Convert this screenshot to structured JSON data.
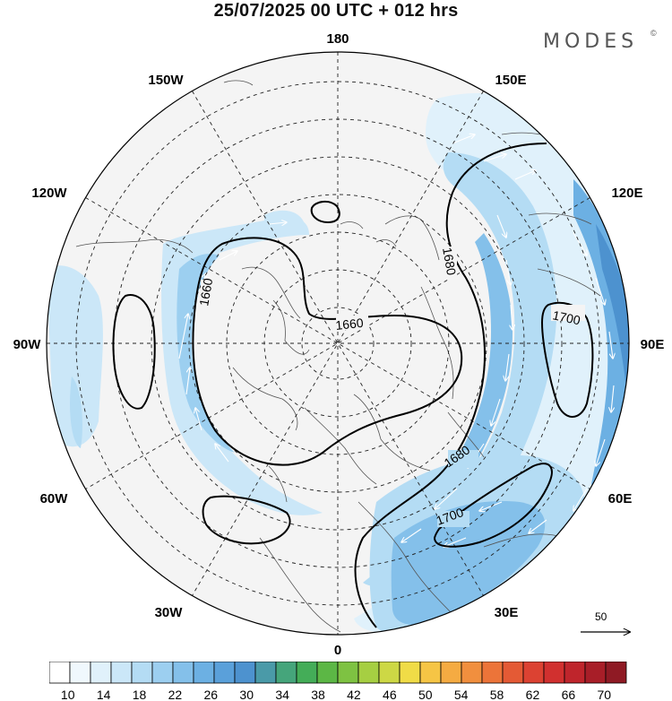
{
  "title": "25/07/2025  00 UTC  + 012 hrs",
  "brand": "MODES",
  "brand_mark": "©",
  "longitude_labels": {
    "top": "180",
    "bottom": "0",
    "left": "90W",
    "right": "90E",
    "w150": "150W",
    "e150": "150E",
    "w120": "120W",
    "e120": "120E",
    "w60": "60W",
    "e60": "60E",
    "w30": "30W",
    "e30": "30E"
  },
  "contours": {
    "l1660a": "1660",
    "l1660b": "1660",
    "l1680a": "1680",
    "l1680b": "1680",
    "l1700a": "1700",
    "l1700b": "1700"
  },
  "wind_scale": {
    "label": "50"
  },
  "colorbar": {
    "ticks": [
      "10",
      "14",
      "18",
      "22",
      "26",
      "30",
      "34",
      "38",
      "42",
      "46",
      "50",
      "54",
      "58",
      "62",
      "66",
      "70"
    ],
    "colors": [
      "#ffffff",
      "#f0f8fd",
      "#e0f1fb",
      "#cbe7f8",
      "#b4dcf4",
      "#9ccff0",
      "#84c0ea",
      "#6cb0e3",
      "#5aa0da",
      "#4d92cf",
      "#4a9aa8",
      "#45a57b",
      "#44ad58",
      "#5cb745",
      "#7ec242",
      "#a6cf42",
      "#cdd845",
      "#f0dc47",
      "#f6c545",
      "#f5ab42",
      "#f18f3e",
      "#ec7439",
      "#e45a35",
      "#dc4232",
      "#d1302f",
      "#bf252c",
      "#a81e28",
      "#8f1a24"
    ]
  }
}
